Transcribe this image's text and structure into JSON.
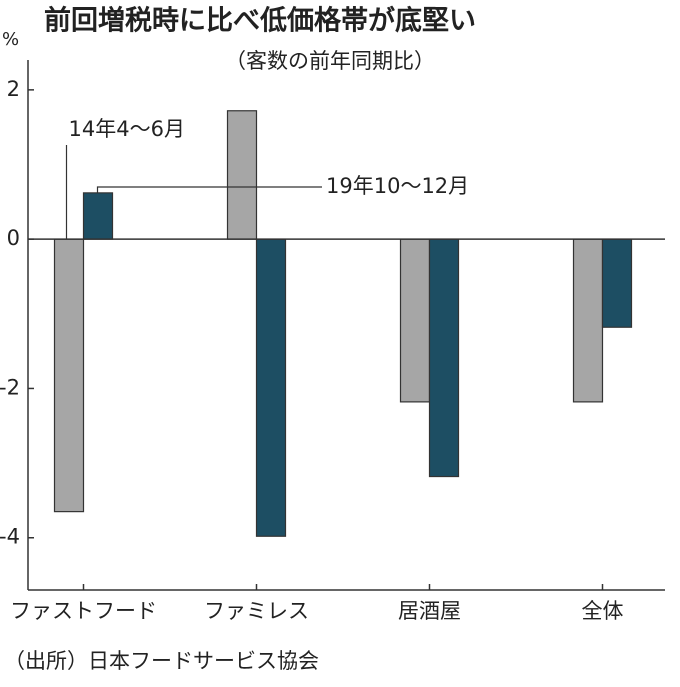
{
  "chart_data": {
    "type": "bar",
    "title": "前回増税時に比べ低価格帯が底堅い",
    "subtitle": "（客数の前年同期比）",
    "y_unit": "%",
    "source": "（出所）日本フードサービス協会",
    "categories": [
      "ファストフード",
      "ファミレス",
      "居酒屋",
      "全体"
    ],
    "series": [
      {
        "name": "14年4〜6月",
        "color": "#a6a6a6",
        "values": [
          -3.65,
          1.72,
          -2.18,
          -2.18
        ]
      },
      {
        "name": "19年10〜12月",
        "color": "#1d4e63",
        "values": [
          0.62,
          -3.98,
          -3.18,
          -1.18
        ]
      }
    ],
    "ylim": [
      -4.7,
      2.4
    ],
    "yticks": [
      2,
      0,
      -2,
      -4
    ]
  }
}
